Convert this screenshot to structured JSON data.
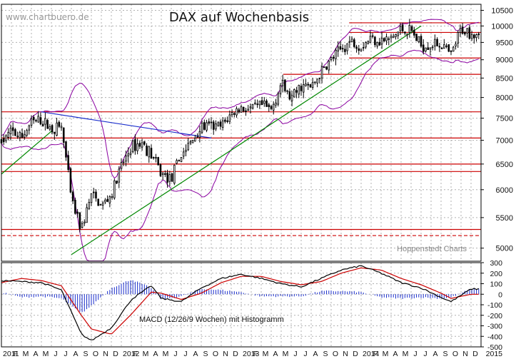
{
  "header": {
    "watermark": "www.chartbuero.de",
    "title": "DAX auf Wochenbasis",
    "credit": "Hoppenstedt Charts",
    "macd_caption": "MACD (12/26/9 Wochen) mit Histogramm"
  },
  "colors": {
    "candle": "#000000",
    "bollinger": "#8a00a0",
    "resistance_line": "#cc0000",
    "support_trend": "#008800",
    "downtrend": "#1a2ecc",
    "macd_line": "#000000",
    "signal_line": "#cc0000",
    "histogram": "#1a2ecc",
    "grid": "#b0b0b0"
  },
  "chart_data": [
    {
      "type": "candlestick",
      "title": "DAX auf Wochenbasis",
      "x_range": [
        "2011-01",
        "2015-01"
      ],
      "ylim": [
        4800,
        10700
      ],
      "y_ticks": [
        5000,
        5500,
        6000,
        6500,
        7000,
        7500,
        8000,
        8500,
        9000,
        9500,
        10000,
        10500
      ],
      "y_tick_labels": [
        "5000",
        "5500",
        "6000",
        "6500",
        "7000",
        "7500",
        "8000",
        "8500",
        "9000",
        "9500",
        "10000",
        "10500"
      ],
      "x_tick_labels": [
        "2011",
        "F",
        "M",
        "A",
        "M",
        "J",
        "J",
        "A",
        "S",
        "O",
        "N",
        "D",
        "2012",
        "F",
        "M",
        "A",
        "M",
        "J",
        "J",
        "A",
        "S",
        "O",
        "N",
        "D",
        "2013",
        "F",
        "M",
        "A",
        "M",
        "J",
        "J",
        "A",
        "S",
        "O",
        "N",
        "D",
        "2014",
        "F",
        "M",
        "A",
        "M",
        "J",
        "J",
        "A",
        "S",
        "O",
        "N",
        "D",
        "2015"
      ],
      "grid": true,
      "weekly_close_anchors": [
        {
          "date": "2011-01",
          "value": 6950
        },
        {
          "date": "2011-02",
          "value": 7200
        },
        {
          "date": "2011-03",
          "value": 7050
        },
        {
          "date": "2011-04",
          "value": 7400
        },
        {
          "date": "2011-05",
          "value": 7450
        },
        {
          "date": "2011-06",
          "value": 7250
        },
        {
          "date": "2011-07",
          "value": 7300
        },
        {
          "date": "2011-08",
          "value": 5800
        },
        {
          "date": "2011-09",
          "value": 5300
        },
        {
          "date": "2011-10",
          "value": 5900
        },
        {
          "date": "2011-11",
          "value": 5700
        },
        {
          "date": "2011-12",
          "value": 5900
        },
        {
          "date": "2012-01",
          "value": 6450
        },
        {
          "date": "2012-02",
          "value": 6850
        },
        {
          "date": "2012-03",
          "value": 6950
        },
        {
          "date": "2012-04",
          "value": 6700
        },
        {
          "date": "2012-05",
          "value": 6300
        },
        {
          "date": "2012-06",
          "value": 6200
        },
        {
          "date": "2012-07",
          "value": 6700
        },
        {
          "date": "2012-08",
          "value": 6950
        },
        {
          "date": "2012-09",
          "value": 7300
        },
        {
          "date": "2012-10",
          "value": 7300
        },
        {
          "date": "2012-11",
          "value": 7300
        },
        {
          "date": "2012-12",
          "value": 7600
        },
        {
          "date": "2013-01",
          "value": 7750
        },
        {
          "date": "2013-02",
          "value": 7700
        },
        {
          "date": "2013-03",
          "value": 7800
        },
        {
          "date": "2013-04",
          "value": 7700
        },
        {
          "date": "2013-05",
          "value": 8350
        },
        {
          "date": "2013-06",
          "value": 7950
        },
        {
          "date": "2013-07",
          "value": 8300
        },
        {
          "date": "2013-08",
          "value": 8250
        },
        {
          "date": "2013-09",
          "value": 8650
        },
        {
          "date": "2013-10",
          "value": 9000
        },
        {
          "date": "2013-11",
          "value": 9300
        },
        {
          "date": "2013-12",
          "value": 9550
        },
        {
          "date": "2014-01",
          "value": 9400
        },
        {
          "date": "2014-02",
          "value": 9650
        },
        {
          "date": "2014-03",
          "value": 9550
        },
        {
          "date": "2014-04",
          "value": 9600
        },
        {
          "date": "2014-05",
          "value": 9900
        },
        {
          "date": "2014-06",
          "value": 9850
        },
        {
          "date": "2014-07",
          "value": 9400
        },
        {
          "date": "2014-08",
          "value": 9450
        },
        {
          "date": "2014-09",
          "value": 9450
        },
        {
          "date": "2014-10",
          "value": 9100
        },
        {
          "date": "2014-11",
          "value": 9900
        },
        {
          "date": "2014-12",
          "value": 9800
        }
      ],
      "horizontal_lines": [
        {
          "value": 10100,
          "color": "red"
        },
        {
          "value": 9800,
          "color": "red"
        },
        {
          "value": 9050,
          "color": "red"
        },
        {
          "value": 8600,
          "color": "red"
        },
        {
          "value": 7650,
          "color": "red"
        },
        {
          "value": 7050,
          "color": "red"
        },
        {
          "value": 6500,
          "color": "red"
        },
        {
          "value": 6350,
          "color": "red"
        },
        {
          "value": 5300,
          "color": "red"
        },
        {
          "value": 5200,
          "color": "red",
          "style": "dashed"
        }
      ],
      "trend_lines": [
        {
          "name": "downtrend",
          "from": {
            "date": "2011-05",
            "value": 7650
          },
          "to": {
            "date": "2012-10",
            "value": 7050
          }
        },
        {
          "name": "support",
          "from": {
            "date": "2011-08",
            "value": 4900
          },
          "to": {
            "date": "2014-07",
            "value": 10000
          }
        },
        {
          "name": "support-short",
          "from": {
            "date": "2011-01",
            "value": 6300
          },
          "to": {
            "date": "2011-06",
            "value": 7200
          }
        }
      ]
    },
    {
      "type": "line",
      "title": "MACD (12/26/9 Wochen) mit Histogramm",
      "ylim": [
        -500,
        300
      ],
      "y_ticks": [
        300,
        200,
        100,
        0,
        -100,
        -200,
        -300,
        -400,
        -500
      ],
      "y_tick_labels": [
        "300",
        "200",
        "100",
        "0",
        "-100",
        "-200",
        "-300",
        "-400",
        "-500"
      ],
      "series_anchors": {
        "macd": [
          {
            "date": "2011-01",
            "value": 130
          },
          {
            "date": "2011-03",
            "value": 120
          },
          {
            "date": "2011-05",
            "value": 110
          },
          {
            "date": "2011-07",
            "value": 40
          },
          {
            "date": "2011-09",
            "value": -380
          },
          {
            "date": "2011-10",
            "value": -440
          },
          {
            "date": "2011-12",
            "value": -320
          },
          {
            "date": "2012-02",
            "value": -50
          },
          {
            "date": "2012-04",
            "value": 80
          },
          {
            "date": "2012-05",
            "value": -40
          },
          {
            "date": "2012-07",
            "value": -70
          },
          {
            "date": "2012-09",
            "value": 60
          },
          {
            "date": "2012-11",
            "value": 150
          },
          {
            "date": "2013-01",
            "value": 190
          },
          {
            "date": "2013-03",
            "value": 150
          },
          {
            "date": "2013-05",
            "value": 100
          },
          {
            "date": "2013-07",
            "value": 70
          },
          {
            "date": "2013-09",
            "value": 150
          },
          {
            "date": "2013-11",
            "value": 230
          },
          {
            "date": "2014-01",
            "value": 270
          },
          {
            "date": "2014-03",
            "value": 200
          },
          {
            "date": "2014-05",
            "value": 110
          },
          {
            "date": "2014-07",
            "value": 60
          },
          {
            "date": "2014-09",
            "value": -30
          },
          {
            "date": "2014-10",
            "value": -70
          },
          {
            "date": "2014-12",
            "value": 50
          }
        ],
        "signal": [
          {
            "date": "2011-01",
            "value": 110
          },
          {
            "date": "2011-03",
            "value": 150
          },
          {
            "date": "2011-05",
            "value": 130
          },
          {
            "date": "2011-07",
            "value": 80
          },
          {
            "date": "2011-09",
            "value": -200
          },
          {
            "date": "2011-10",
            "value": -330
          },
          {
            "date": "2011-12",
            "value": -380
          },
          {
            "date": "2012-02",
            "value": -190
          },
          {
            "date": "2012-04",
            "value": 20
          },
          {
            "date": "2012-05",
            "value": 10
          },
          {
            "date": "2012-07",
            "value": -50
          },
          {
            "date": "2012-09",
            "value": 10
          },
          {
            "date": "2012-11",
            "value": 110
          },
          {
            "date": "2013-01",
            "value": 170
          },
          {
            "date": "2013-03",
            "value": 170
          },
          {
            "date": "2013-05",
            "value": 120
          },
          {
            "date": "2013-07",
            "value": 90
          },
          {
            "date": "2013-09",
            "value": 120
          },
          {
            "date": "2013-11",
            "value": 200
          },
          {
            "date": "2014-01",
            "value": 250
          },
          {
            "date": "2014-03",
            "value": 230
          },
          {
            "date": "2014-05",
            "value": 150
          },
          {
            "date": "2014-07",
            "value": 90
          },
          {
            "date": "2014-09",
            "value": 10
          },
          {
            "date": "2014-10",
            "value": -40
          },
          {
            "date": "2014-12",
            "value": 0
          }
        ]
      }
    }
  ]
}
